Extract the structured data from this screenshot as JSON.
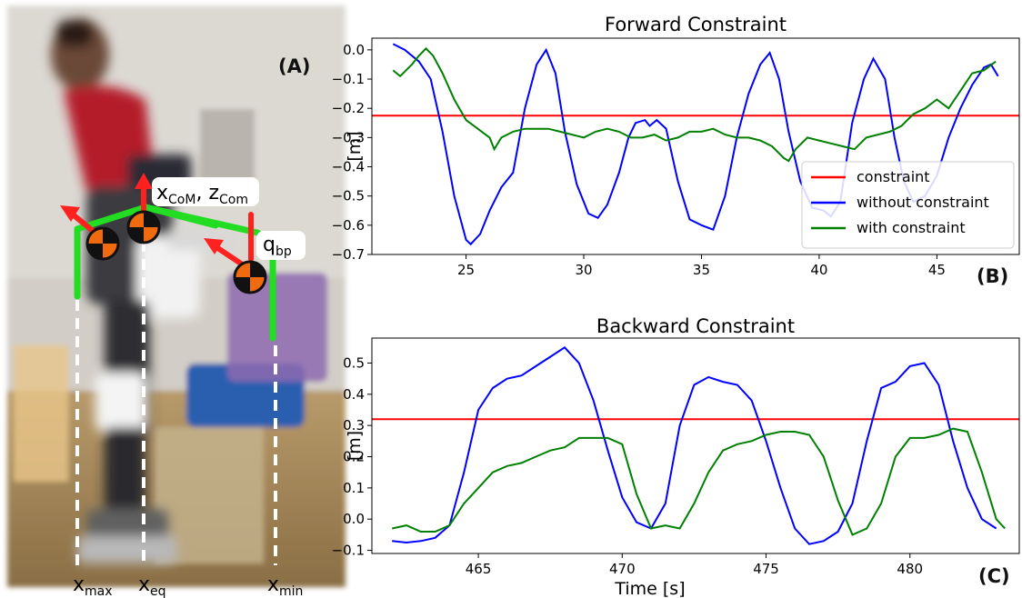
{
  "panels": {
    "a": "(A)",
    "b": "(B)",
    "c": "(C)"
  },
  "photo": {
    "labels": {
      "com": "x",
      "com_sub1": "CoM",
      "com_mid": ", z",
      "com_sub2": "Com",
      "qbp": "q",
      "qbp_sub": "bp",
      "xmax": "x",
      "xmax_sub": "max",
      "xeq": "x",
      "xeq_sub": "eq",
      "xmin": "x",
      "xmin_sub": "min"
    },
    "colors": {
      "support_polygon": "#22dd22",
      "arrow": "#ff2020",
      "marker_orange": "#f06a10",
      "marker_black": "#111111",
      "guide": "#ffffff"
    },
    "icons": [
      "com-marker-icon",
      "arrow-icon"
    ]
  },
  "chart_data": [
    {
      "type": "line",
      "title": "Forward Constraint",
      "xlabel": "",
      "ylabel": "[m]",
      "xlim": [
        21,
        48.5
      ],
      "ylim": [
        -0.7,
        0.04
      ],
      "xticks": [
        25,
        30,
        35,
        40,
        45
      ],
      "yticks": [
        0.0,
        -0.1,
        -0.2,
        -0.3,
        -0.4,
        -0.5,
        -0.6,
        -0.7
      ],
      "ytick_labels": [
        "0.0",
        "−0.1",
        "−0.2",
        "−0.3",
        "−0.4",
        "−0.5",
        "−0.6",
        "−0.7"
      ],
      "legend_position": "lower-right",
      "grid": false,
      "series": [
        {
          "name": "constraint",
          "color": "#ff0000",
          "points": [
            [
              21,
              -0.225
            ],
            [
              48.5,
              -0.225
            ]
          ]
        },
        {
          "name": "without constraint",
          "color": "#0000ff",
          "points": [
            [
              21.9,
              0.02
            ],
            [
              22.4,
              0.0
            ],
            [
              23.0,
              -0.04
            ],
            [
              23.5,
              -0.1
            ],
            [
              24.0,
              -0.28
            ],
            [
              24.5,
              -0.5
            ],
            [
              25.0,
              -0.65
            ],
            [
              25.2,
              -0.665
            ],
            [
              25.6,
              -0.63
            ],
            [
              26.0,
              -0.55
            ],
            [
              26.5,
              -0.47
            ],
            [
              27.0,
              -0.42
            ],
            [
              27.5,
              -0.2
            ],
            [
              28.0,
              -0.05
            ],
            [
              28.4,
              0.0
            ],
            [
              28.8,
              -0.08
            ],
            [
              29.2,
              -0.28
            ],
            [
              29.7,
              -0.46
            ],
            [
              30.2,
              -0.56
            ],
            [
              30.6,
              -0.575
            ],
            [
              31.0,
              -0.53
            ],
            [
              31.5,
              -0.42
            ],
            [
              31.9,
              -0.3
            ],
            [
              32.2,
              -0.25
            ],
            [
              32.6,
              -0.24
            ],
            [
              32.8,
              -0.26
            ],
            [
              33.1,
              -0.24
            ],
            [
              33.5,
              -0.27
            ],
            [
              34.0,
              -0.45
            ],
            [
              34.5,
              -0.58
            ],
            [
              35.0,
              -0.6
            ],
            [
              35.5,
              -0.615
            ],
            [
              36.0,
              -0.5
            ],
            [
              36.5,
              -0.3
            ],
            [
              37.0,
              -0.15
            ],
            [
              37.5,
              -0.05
            ],
            [
              37.9,
              -0.01
            ],
            [
              38.3,
              -0.1
            ],
            [
              38.7,
              -0.28
            ],
            [
              39.2,
              -0.45
            ],
            [
              39.7,
              -0.54
            ],
            [
              40.2,
              -0.55
            ],
            [
              40.5,
              -0.57
            ],
            [
              40.9,
              -0.52
            ],
            [
              41.4,
              -0.25
            ],
            [
              41.9,
              -0.1
            ],
            [
              42.3,
              -0.03
            ],
            [
              42.8,
              -0.1
            ],
            [
              43.2,
              -0.3
            ],
            [
              43.6,
              -0.45
            ],
            [
              44.0,
              -0.52
            ],
            [
              44.5,
              -0.5
            ],
            [
              45.0,
              -0.43
            ],
            [
              45.5,
              -0.3
            ],
            [
              46.0,
              -0.2
            ],
            [
              46.5,
              -0.12
            ],
            [
              47.0,
              -0.06
            ],
            [
              47.3,
              -0.05
            ],
            [
              47.6,
              -0.09
            ]
          ]
        },
        {
          "name": "with constraint",
          "color": "#008000",
          "points": [
            [
              21.9,
              -0.07
            ],
            [
              22.2,
              -0.09
            ],
            [
              22.7,
              -0.05
            ],
            [
              23.0,
              -0.02
            ],
            [
              23.3,
              0.005
            ],
            [
              23.6,
              -0.02
            ],
            [
              24.0,
              -0.08
            ],
            [
              24.5,
              -0.17
            ],
            [
              25.0,
              -0.24
            ],
            [
              25.5,
              -0.27
            ],
            [
              26.0,
              -0.3
            ],
            [
              26.2,
              -0.34
            ],
            [
              26.5,
              -0.3
            ],
            [
              27.0,
              -0.28
            ],
            [
              27.5,
              -0.27
            ],
            [
              28.0,
              -0.27
            ],
            [
              28.5,
              -0.27
            ],
            [
              29.0,
              -0.28
            ],
            [
              29.5,
              -0.29
            ],
            [
              30.0,
              -0.3
            ],
            [
              30.5,
              -0.28
            ],
            [
              31.0,
              -0.27
            ],
            [
              31.5,
              -0.28
            ],
            [
              32.0,
              -0.3
            ],
            [
              32.5,
              -0.3
            ],
            [
              33.0,
              -0.29
            ],
            [
              33.5,
              -0.31
            ],
            [
              34.0,
              -0.3
            ],
            [
              34.5,
              -0.28
            ],
            [
              35.0,
              -0.28
            ],
            [
              35.5,
              -0.27
            ],
            [
              36.0,
              -0.29
            ],
            [
              36.5,
              -0.3
            ],
            [
              37.0,
              -0.3
            ],
            [
              37.5,
              -0.31
            ],
            [
              38.0,
              -0.33
            ],
            [
              38.5,
              -0.37
            ],
            [
              38.7,
              -0.38
            ],
            [
              39.0,
              -0.34
            ],
            [
              39.5,
              -0.3
            ],
            [
              40.0,
              -0.31
            ],
            [
              40.5,
              -0.32
            ],
            [
              41.0,
              -0.33
            ],
            [
              41.5,
              -0.34
            ],
            [
              42.0,
              -0.3
            ],
            [
              42.5,
              -0.29
            ],
            [
              43.0,
              -0.28
            ],
            [
              43.5,
              -0.26
            ],
            [
              44.0,
              -0.22
            ],
            [
              44.5,
              -0.2
            ],
            [
              45.0,
              -0.17
            ],
            [
              45.5,
              -0.2
            ],
            [
              46.0,
              -0.14
            ],
            [
              46.5,
              -0.08
            ],
            [
              47.0,
              -0.07
            ],
            [
              47.5,
              -0.04
            ]
          ]
        }
      ]
    },
    {
      "type": "line",
      "title": "Backward Constraint",
      "xlabel": "Time [s]",
      "ylabel": "[m]",
      "xlim": [
        461.3,
        483.8
      ],
      "ylim": [
        -0.11,
        0.58
      ],
      "xticks": [
        465,
        470,
        475,
        480
      ],
      "yticks": [
        0.5,
        0.4,
        0.3,
        0.2,
        0.1,
        0.0,
        -0.1
      ],
      "ytick_labels": [
        "0.5",
        "0.4",
        "0.3",
        "0.2",
        "0.1",
        "0.0",
        "−0.1"
      ],
      "legend_position": "none",
      "grid": false,
      "series": [
        {
          "name": "constraint",
          "color": "#ff0000",
          "points": [
            [
              461.3,
              0.32
            ],
            [
              483.8,
              0.32
            ]
          ]
        },
        {
          "name": "without constraint",
          "color": "#0000ff",
          "points": [
            [
              462.0,
              -0.07
            ],
            [
              462.5,
              -0.075
            ],
            [
              463.0,
              -0.07
            ],
            [
              463.5,
              -0.06
            ],
            [
              464.0,
              -0.02
            ],
            [
              464.5,
              0.15
            ],
            [
              465.0,
              0.35
            ],
            [
              465.5,
              0.42
            ],
            [
              466.0,
              0.45
            ],
            [
              466.5,
              0.46
            ],
            [
              467.0,
              0.49
            ],
            [
              467.5,
              0.52
            ],
            [
              468.0,
              0.55
            ],
            [
              468.5,
              0.5
            ],
            [
              469.0,
              0.38
            ],
            [
              469.5,
              0.22
            ],
            [
              470.0,
              0.07
            ],
            [
              470.5,
              -0.01
            ],
            [
              471.0,
              -0.03
            ],
            [
              471.5,
              0.05
            ],
            [
              472.0,
              0.3
            ],
            [
              472.5,
              0.43
            ],
            [
              473.0,
              0.455
            ],
            [
              473.5,
              0.44
            ],
            [
              474.0,
              0.43
            ],
            [
              474.5,
              0.38
            ],
            [
              475.0,
              0.25
            ],
            [
              475.5,
              0.1
            ],
            [
              476.0,
              -0.03
            ],
            [
              476.5,
              -0.08
            ],
            [
              477.0,
              -0.07
            ],
            [
              477.5,
              -0.04
            ],
            [
              478.0,
              0.05
            ],
            [
              478.5,
              0.25
            ],
            [
              479.0,
              0.42
            ],
            [
              479.5,
              0.44
            ],
            [
              480.0,
              0.49
            ],
            [
              480.5,
              0.5
            ],
            [
              481.0,
              0.43
            ],
            [
              481.5,
              0.25
            ],
            [
              482.0,
              0.1
            ],
            [
              482.5,
              0.0
            ],
            [
              483.0,
              -0.03
            ]
          ]
        },
        {
          "name": "with constraint",
          "color": "#008000",
          "points": [
            [
              462.0,
              -0.03
            ],
            [
              462.5,
              -0.02
            ],
            [
              463.0,
              -0.04
            ],
            [
              463.5,
              -0.04
            ],
            [
              464.0,
              -0.02
            ],
            [
              464.5,
              0.05
            ],
            [
              465.0,
              0.1
            ],
            [
              465.5,
              0.15
            ],
            [
              466.0,
              0.17
            ],
            [
              466.5,
              0.18
            ],
            [
              467.0,
              0.2
            ],
            [
              467.5,
              0.22
            ],
            [
              468.0,
              0.23
            ],
            [
              468.5,
              0.26
            ],
            [
              469.0,
              0.26
            ],
            [
              469.5,
              0.26
            ],
            [
              470.0,
              0.24
            ],
            [
              470.5,
              0.08
            ],
            [
              471.0,
              -0.03
            ],
            [
              471.5,
              -0.02
            ],
            [
              472.0,
              -0.03
            ],
            [
              472.5,
              0.05
            ],
            [
              473.0,
              0.15
            ],
            [
              473.5,
              0.22
            ],
            [
              474.0,
              0.24
            ],
            [
              474.5,
              0.25
            ],
            [
              475.0,
              0.27
            ],
            [
              475.5,
              0.28
            ],
            [
              476.0,
              0.28
            ],
            [
              476.5,
              0.27
            ],
            [
              477.0,
              0.2
            ],
            [
              477.5,
              0.06
            ],
            [
              478.0,
              -0.05
            ],
            [
              478.5,
              -0.03
            ],
            [
              479.0,
              0.05
            ],
            [
              479.5,
              0.2
            ],
            [
              480.0,
              0.26
            ],
            [
              480.5,
              0.26
            ],
            [
              481.0,
              0.27
            ],
            [
              481.5,
              0.29
            ],
            [
              482.0,
              0.28
            ],
            [
              482.5,
              0.15
            ],
            [
              483.0,
              0.0
            ],
            [
              483.3,
              -0.03
            ]
          ]
        }
      ]
    }
  ]
}
